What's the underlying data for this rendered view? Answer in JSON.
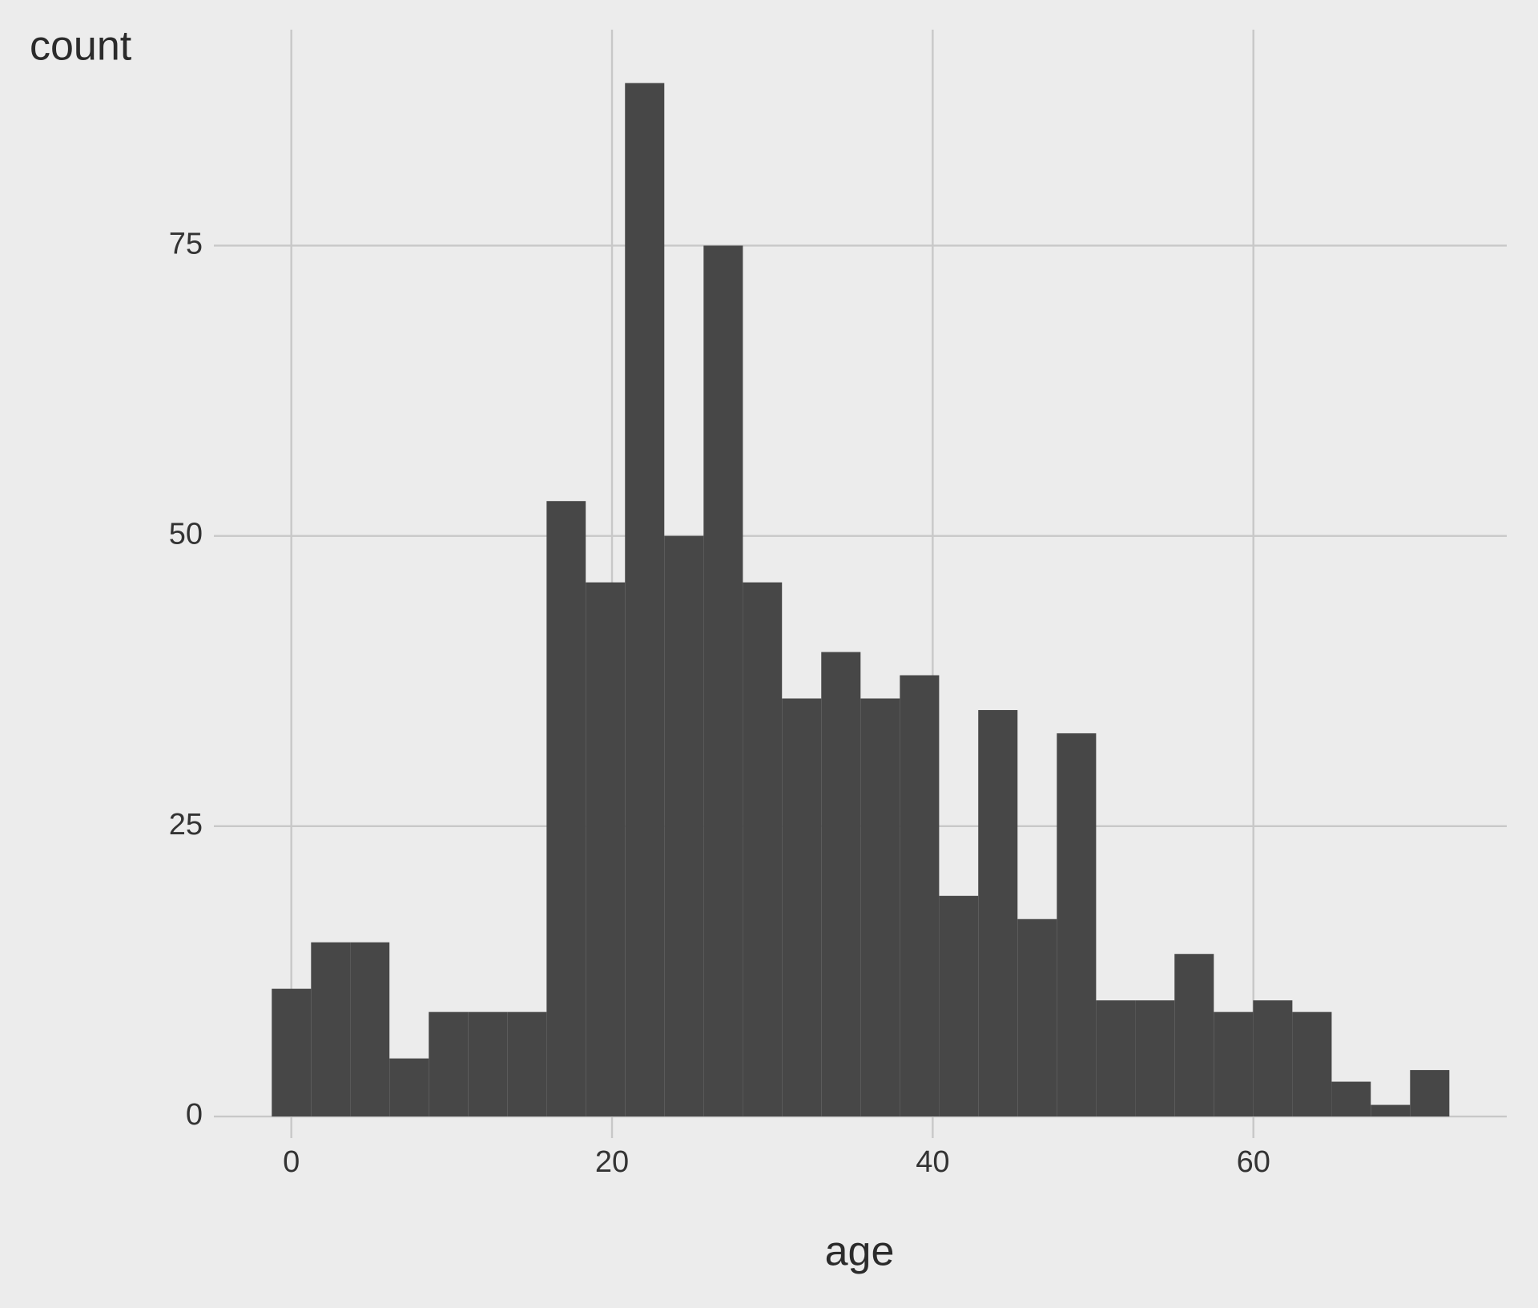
{
  "chart_data": {
    "type": "histogram",
    "x_label": "age",
    "y_label": "count",
    "bins": [
      -1.22,
      1.23,
      3.67,
      6.12,
      8.57,
      11.02,
      13.47,
      15.92,
      18.36,
      20.81,
      23.26,
      25.71,
      28.16,
      30.6,
      33.05,
      35.5,
      37.95,
      40.4,
      42.84,
      45.29,
      47.74,
      50.19,
      52.64,
      55.08,
      57.53,
      59.98,
      62.43,
      64.88,
      67.32,
      69.77,
      72.22
    ],
    "values": [
      11,
      15,
      15,
      5,
      9,
      9,
      9,
      53,
      46,
      89,
      50,
      75,
      46,
      36,
      40,
      36,
      38,
      19,
      35,
      17,
      33,
      10,
      10,
      14,
      9,
      10,
      9,
      3,
      1,
      4
    ],
    "color": "#474747",
    "xlim": [
      -4.83,
      75.8
    ],
    "xticks": [
      0,
      20,
      40,
      60
    ],
    "ylim": [
      -1.86,
      93.6
    ],
    "yticks": [
      0,
      25,
      50,
      75
    ],
    "grid": true
  }
}
